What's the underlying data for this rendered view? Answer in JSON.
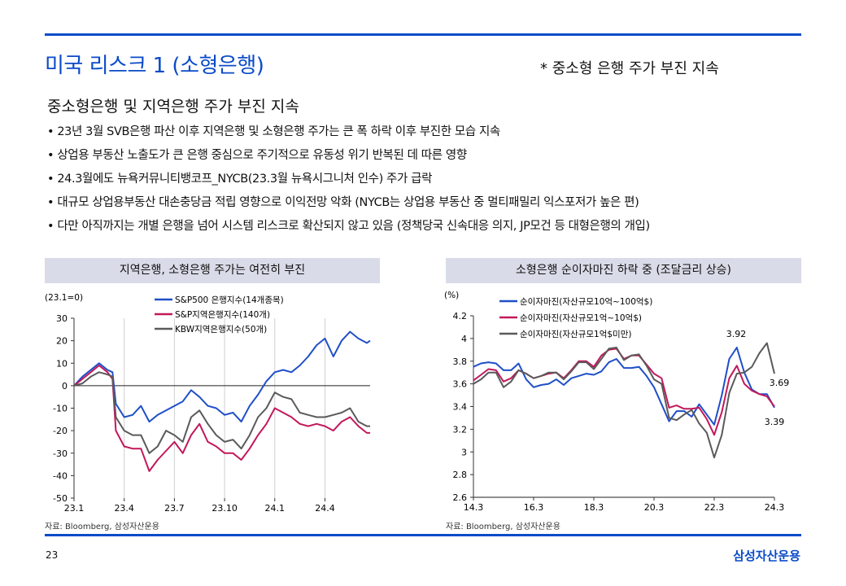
{
  "title": "미국 리스크 1 (소형은행)",
  "subnote": "* 중소형 은행 주가 부진 지속",
  "heading": "중소형은행 및 지역은행 주가 부진 지속",
  "bullets": [
    "• 23년 3월 SVB은행 파산 이후 지역은행 및 소형은행 주가는 큰 폭 하락 이후 부진한 모습 지속",
    "• 상업용 부동산 노출도가 큰 은행 중심으로 주기적으로 유동성 위기 반복된 데 따른 영향",
    "• 24.3월에도 뉴욕커뮤니티뱅코프_NYCB(23.3월  뉴욕시그니처  인수) 주가 급락",
    "• 대규모 상업용부동산  대손충당금  적립 영향으로 이익전망 악화 (NYCB는 상업용 부동산 중 멀티패밀리 익스포저가 높은 편)",
    "• 다만 아직까지는  개별 은행을 넘어 시스템 리스크로 확산되지 않고 있음 (정책당국 신속대응 의지, JP모건 등 대형은행의 개입)"
  ],
  "footer": {
    "page": "23",
    "logo": "삼성자산운용"
  },
  "chart_data": [
    {
      "type": "line",
      "title": "지역은행, 소형은행 주가는 여전히 부진",
      "unit_label": "(23.1=0)",
      "source": "자료: Bloomberg, 삼성자산운용",
      "x_unit": "months since 23.1",
      "xticks": [
        {
          "x": 0,
          "label": "23.1"
        },
        {
          "x": 3,
          "label": "23.4"
        },
        {
          "x": 6,
          "label": "23.7"
        },
        {
          "x": 9,
          "label": "23.10"
        },
        {
          "x": 12,
          "label": "24.1"
        },
        {
          "x": 15,
          "label": "24.4"
        }
      ],
      "ylim": [
        -50,
        30
      ],
      "yticks": [
        30,
        20,
        10,
        0,
        -10,
        -20,
        -30,
        -40,
        -50
      ],
      "x": [
        0,
        0.5,
        1,
        1.5,
        2,
        2.3,
        2.5,
        3,
        3.5,
        4,
        4.5,
        5,
        5.5,
        6,
        6.5,
        7,
        7.5,
        8,
        8.5,
        9,
        9.5,
        10,
        10.5,
        11,
        11.5,
        12,
        12.5,
        13,
        13.5,
        14,
        14.5,
        15,
        15.5,
        16,
        16.5,
        17,
        17.5,
        17.7
      ],
      "series": [
        {
          "name": "S&P500 은행지수(14개종목)",
          "color": "#1f4fc8",
          "values": [
            0,
            4,
            7,
            10,
            7,
            6,
            -8,
            -14,
            -13,
            -9,
            -16,
            -13,
            -11,
            -9,
            -7,
            -2,
            -5,
            -9,
            -10,
            -13,
            -12,
            -16,
            -9,
            -4,
            2,
            6,
            7,
            6,
            9,
            13,
            18,
            21,
            13,
            20,
            24,
            21,
            19,
            20
          ]
        },
        {
          "name": "S&P지역은행지수(140개)",
          "color": "#c2185b",
          "values": [
            0,
            3,
            6,
            9,
            6,
            3,
            -20,
            -27,
            -28,
            -28,
            -38,
            -33,
            -29,
            -25,
            -30,
            -22,
            -17,
            -25,
            -27,
            -30,
            -30,
            -33,
            -28,
            -22,
            -17,
            -10,
            -12,
            -14,
            -17,
            -18,
            -17,
            -18,
            -20,
            -16,
            -14,
            -18,
            -21,
            -21
          ]
        },
        {
          "name": "KBW지역은행지수(50개)",
          "color": "#5a5a5a",
          "values": [
            0,
            1,
            4,
            6,
            5,
            4,
            -14,
            -20,
            -22,
            -22,
            -30,
            -27,
            -20,
            -22,
            -25,
            -14,
            -11,
            -17,
            -22,
            -25,
            -24,
            -28,
            -22,
            -14,
            -10,
            -3,
            -5,
            -6,
            -12,
            -13,
            -14,
            -14,
            -13,
            -12,
            -10,
            -16,
            -18,
            -18
          ]
        }
      ],
      "legend": "top-center"
    },
    {
      "type": "line",
      "title": "소형은행 순이자마진 하락 중 (조달금리 상승)",
      "unit_label": "(%)",
      "source": "자료: Bloomberg, 삼성자산운용",
      "x_unit": "quarters since 14.3",
      "xticks": [
        {
          "x": 0,
          "label": "14.3"
        },
        {
          "x": 8,
          "label": "16.3"
        },
        {
          "x": 16,
          "label": "18.3"
        },
        {
          "x": 24,
          "label": "20.3"
        },
        {
          "x": 32,
          "label": "22.3"
        },
        {
          "x": 40,
          "label": "24.3"
        }
      ],
      "ylim": [
        2.6,
        4.2
      ],
      "yticks": [
        4.2,
        4.0,
        3.8,
        3.6,
        3.4,
        3.2,
        3.0,
        2.8,
        2.6
      ],
      "series": [
        {
          "name": "순이자마진(자산규모10억~100억$)",
          "color": "#1f4fc8",
          "values": [
            3.75,
            3.78,
            3.79,
            3.78,
            3.72,
            3.72,
            3.78,
            3.64,
            3.57,
            3.59,
            3.6,
            3.64,
            3.59,
            3.65,
            3.67,
            3.69,
            3.68,
            3.71,
            3.79,
            3.82,
            3.74,
            3.74,
            3.75,
            3.67,
            3.57,
            3.42,
            3.27,
            3.36,
            3.36,
            3.31,
            3.42,
            3.33,
            3.24,
            3.5,
            3.82,
            3.92,
            3.7,
            3.55,
            3.51,
            3.51,
            3.39
          ]
        },
        {
          "name": "순이자마진(자산규모1억~10억$)",
          "color": "#c2185b",
          "values": [
            3.63,
            3.68,
            3.73,
            3.72,
            3.62,
            3.65,
            3.72,
            3.69,
            3.65,
            3.67,
            3.69,
            3.7,
            3.65,
            3.72,
            3.8,
            3.8,
            3.75,
            3.85,
            3.9,
            3.91,
            3.82,
            3.85,
            3.85,
            3.77,
            3.69,
            3.65,
            3.39,
            3.41,
            3.38,
            3.38,
            3.39,
            3.29,
            3.15,
            3.35,
            3.65,
            3.76,
            3.6,
            3.54,
            3.51,
            3.49,
            3.4
          ]
        },
        {
          "name": "순이자마진(자산규모1억$미만)",
          "color": "#5a5a5a",
          "values": [
            3.6,
            3.64,
            3.7,
            3.7,
            3.57,
            3.62,
            3.72,
            3.69,
            3.65,
            3.67,
            3.7,
            3.7,
            3.64,
            3.71,
            3.79,
            3.79,
            3.73,
            3.82,
            3.91,
            3.92,
            3.81,
            3.85,
            3.86,
            3.76,
            3.64,
            3.6,
            3.3,
            3.28,
            3.33,
            3.37,
            3.25,
            3.17,
            2.95,
            3.15,
            3.52,
            3.69,
            3.7,
            3.75,
            3.87,
            3.96,
            3.69
          ]
        }
      ],
      "annotations": [
        "3.92",
        "3.69",
        "3.39"
      ],
      "legend": "top-left"
    }
  ]
}
